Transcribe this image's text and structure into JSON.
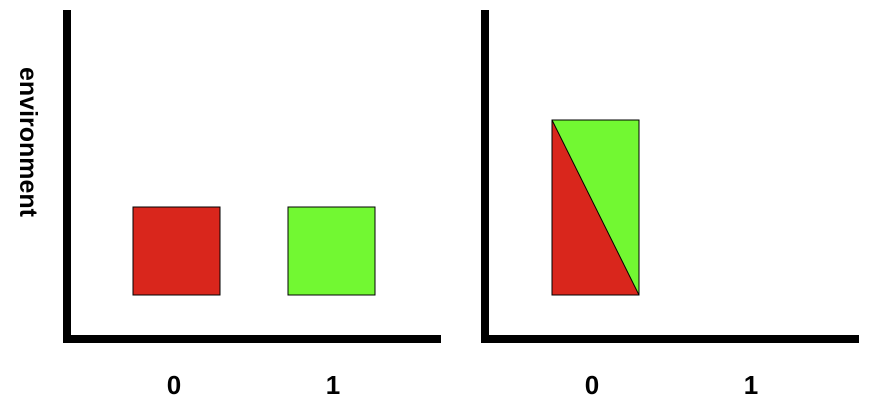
{
  "y_label": "environment",
  "colors": {
    "red": "#d9261c",
    "green": "#72f832",
    "axis": "#000000"
  },
  "left_panel": {
    "ticks": [
      "0",
      "1"
    ]
  },
  "right_panel": {
    "ticks": [
      "0",
      "1"
    ]
  }
}
